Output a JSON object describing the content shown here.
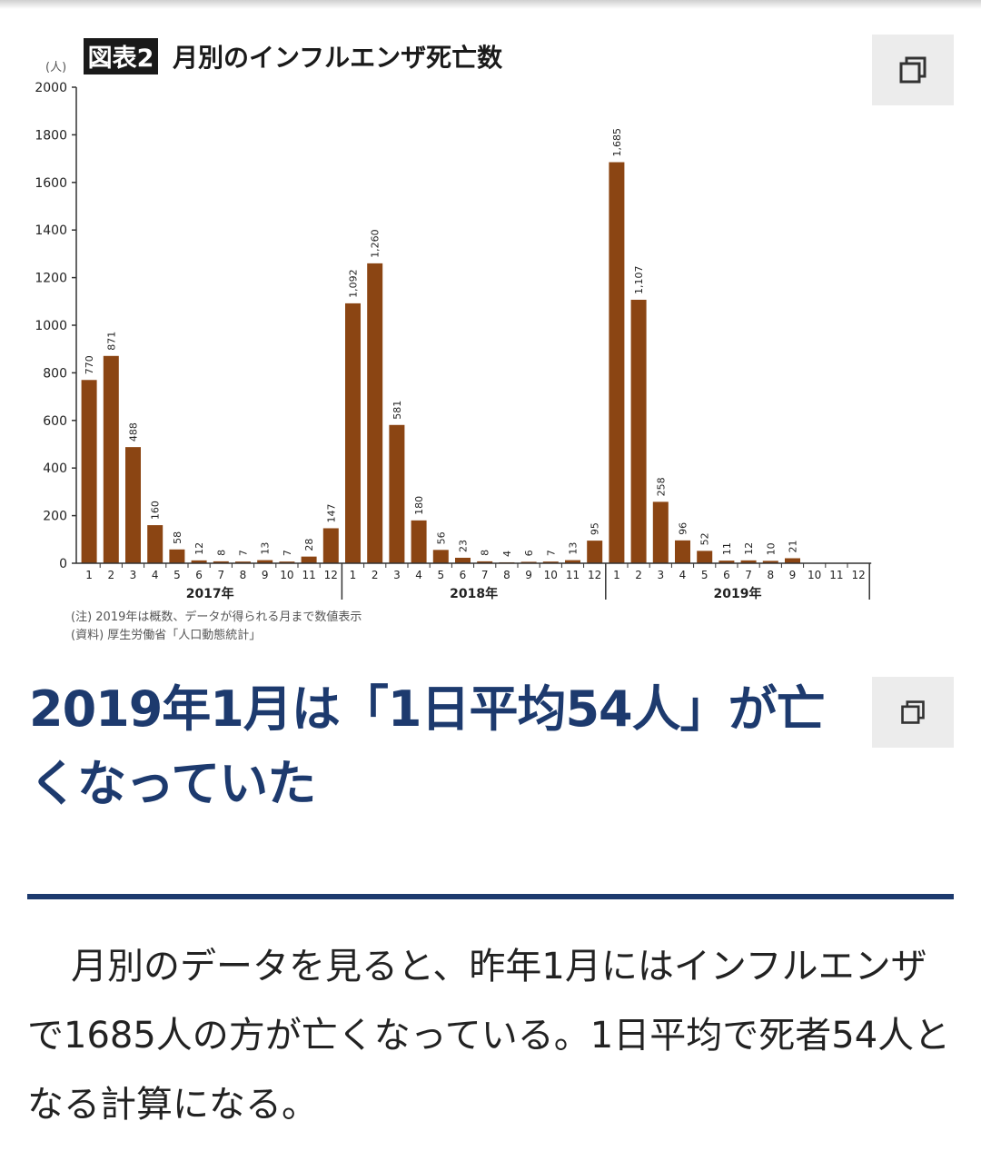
{
  "chart": {
    "badge": "図表2",
    "title": "月別のインフルエンザ死亡数",
    "unit": "(人)",
    "note1": "(注) 2019年は概数、データが得られる月まで数値表示",
    "note2": "(資料) 厚生労働省「人口動態統計」"
  },
  "chart_data": {
    "type": "bar",
    "title": "月別のインフルエンザ死亡数",
    "ylabel": "(人)",
    "ylim": [
      0,
      2000
    ],
    "yticks": [
      0,
      200,
      400,
      600,
      800,
      1000,
      1200,
      1400,
      1600,
      1800,
      2000
    ],
    "bar_color": "#8b4513",
    "groups": [
      {
        "year": "2017年",
        "months": [
          "1",
          "2",
          "3",
          "4",
          "5",
          "6",
          "7",
          "8",
          "9",
          "10",
          "11",
          "12"
        ],
        "values": [
          770,
          871,
          488,
          160,
          58,
          12,
          8,
          7,
          13,
          7,
          28,
          147
        ],
        "labels": [
          "770",
          "871",
          "488",
          "160",
          "58",
          "12",
          "8",
          "7",
          "13",
          "7",
          "28",
          "147"
        ]
      },
      {
        "year": "2018年",
        "months": [
          "1",
          "2",
          "3",
          "4",
          "5",
          "6",
          "7",
          "8",
          "9",
          "10",
          "11",
          "12"
        ],
        "values": [
          1092,
          1260,
          581,
          180,
          56,
          23,
          8,
          4,
          6,
          7,
          13,
          95
        ],
        "labels": [
          "1,092",
          "1,260",
          "581",
          "180",
          "56",
          "23",
          "8",
          "4",
          "6",
          "7",
          "13",
          "95"
        ]
      },
      {
        "year": "2019年",
        "months": [
          "1",
          "2",
          "3",
          "4",
          "5",
          "6",
          "7",
          "8",
          "9",
          "10",
          "11",
          "12"
        ],
        "values": [
          1685,
          1107,
          258,
          96,
          52,
          11,
          12,
          10,
          21,
          null,
          null,
          null
        ],
        "labels": [
          "1,685",
          "1,107",
          "258",
          "96",
          "52",
          "11",
          "12",
          "10",
          "21",
          "",
          "",
          ""
        ]
      }
    ]
  },
  "article": {
    "heading": "2019年1月は「1日平均54人」が亡くなっていた",
    "body": "月別のデータを見ると、昨年1月にはインフルエンザで1685人の方が亡くなっている。1日平均で死者54人となる計算になる。"
  },
  "buttons": {
    "copy_icon": "copy-icon",
    "background": "#ececec"
  },
  "colors": {
    "heading": "#1d3a6e",
    "rule": "#1d3a6e",
    "body_text": "#222222",
    "bar": "#8b4513"
  }
}
